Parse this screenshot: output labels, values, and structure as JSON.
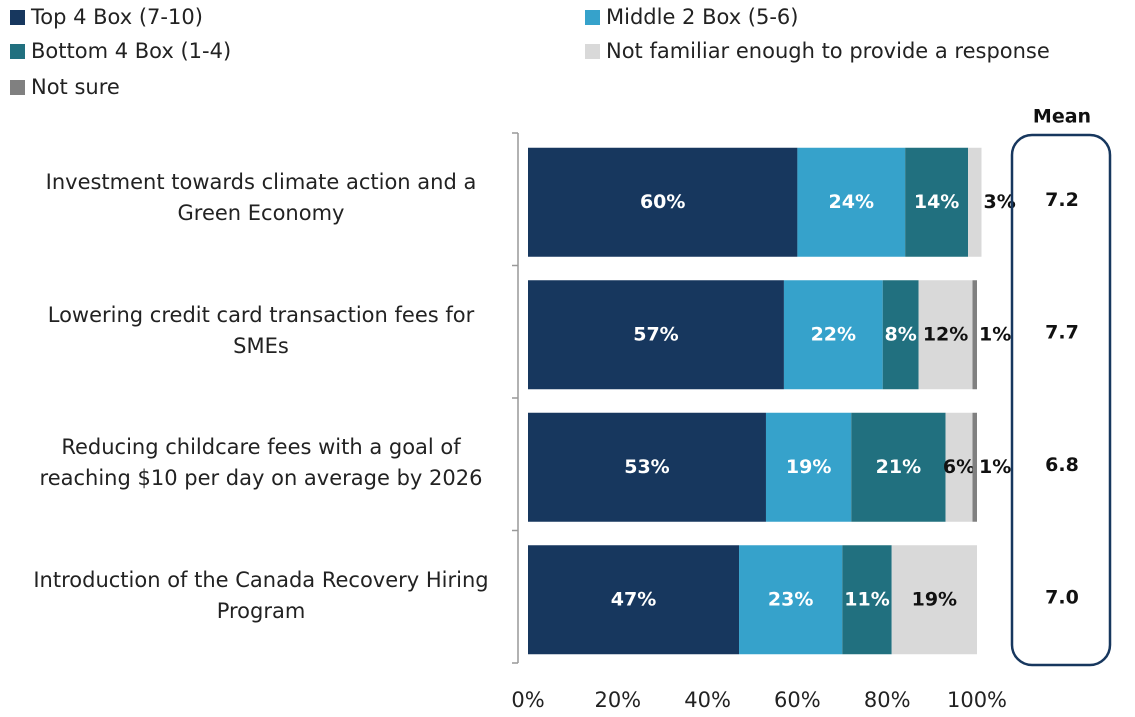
{
  "chart_data": {
    "type": "stacked_barh",
    "categories": [
      "Investment towards climate action and a\nGreen Economy",
      "Lowering credit card transaction fees for\nSMEs",
      "Reducing childcare fees with a goal of\nreaching $10 per day on average by 2026",
      "Introduction of the Canada Recovery Hiring\nProgram"
    ],
    "series": [
      {
        "name": "Top 4 Box (7-10)",
        "color": "#17375e",
        "label_color": "#ffffff",
        "values": [
          60,
          57,
          53,
          47
        ],
        "value_labels": [
          "60%",
          "57%",
          "53%",
          "47%"
        ]
      },
      {
        "name": "Middle 2 Box (5-6)",
        "color": "#36a2cb",
        "label_color": "#ffffff",
        "values": [
          24,
          22,
          19,
          23
        ],
        "value_labels": [
          "24%",
          "22%",
          "19%",
          "23%"
        ]
      },
      {
        "name": "Bottom 4 Box (1-4)",
        "color": "#21707f",
        "label_color": "#ffffff",
        "values": [
          14,
          8,
          21,
          11
        ],
        "value_labels": [
          "14%",
          "8%",
          "21%",
          "11%"
        ]
      },
      {
        "name": "Not familiar enough to provide a response",
        "color": "#d9d9d9",
        "label_color": "#111111",
        "values": [
          3,
          12,
          6,
          19
        ],
        "value_labels": [
          "3%",
          "12%",
          "6%",
          "19%"
        ]
      },
      {
        "name": "Not sure",
        "color": "#808080",
        "label_color": "#111111",
        "values": [
          null,
          1,
          1,
          null
        ],
        "value_labels": [
          null,
          "1%",
          "1%",
          null
        ]
      }
    ],
    "xlim": [
      0,
      100
    ],
    "xticks": [
      {
        "value": 0,
        "label": "0%"
      },
      {
        "value": 20,
        "label": "20%"
      },
      {
        "value": 40,
        "label": "40%"
      },
      {
        "value": 60,
        "label": "60%"
      },
      {
        "value": 80,
        "label": "80%"
      },
      {
        "value": 100,
        "label": "100%"
      }
    ],
    "mean": {
      "label": "Mean",
      "values": [
        7.2,
        7.7,
        6.8,
        7.0
      ],
      "value_labels": [
        "7.2",
        "7.7",
        "6.8",
        "7.0"
      ]
    }
  }
}
